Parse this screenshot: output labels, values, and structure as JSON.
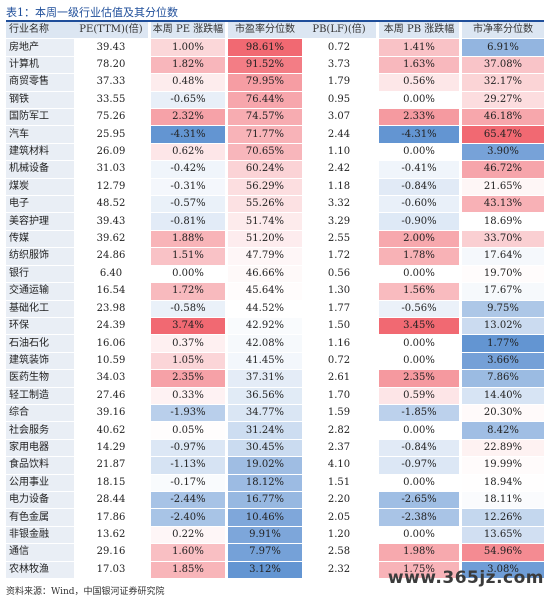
{
  "title": "表1：本周一级行业估值及其分位数",
  "headers": [
    "行业名称",
    "PE(TTM)(倍)",
    "本周 PE 涨跌幅",
    "市盈率分位数",
    "PB(LF)(倍)",
    "本周 PB 涨跌幅",
    "市净率分位数"
  ],
  "rows": [
    [
      "房地产",
      "39.43",
      "1.00%",
      "98.61%",
      "0.72",
      "1.41%",
      "6.91%"
    ],
    [
      "计算机",
      "78.20",
      "1.82%",
      "91.52%",
      "3.73",
      "1.63%",
      "37.08%"
    ],
    [
      "商贸零售",
      "37.33",
      "0.48%",
      "79.95%",
      "1.79",
      "0.56%",
      "32.17%"
    ],
    [
      "钢铁",
      "33.55",
      "-0.65%",
      "76.44%",
      "0.95",
      "0.00%",
      "29.27%"
    ],
    [
      "国防军工",
      "75.26",
      "2.32%",
      "74.57%",
      "3.07",
      "2.33%",
      "46.18%"
    ],
    [
      "汽车",
      "25.95",
      "-4.31%",
      "71.77%",
      "2.44",
      "-4.31%",
      "65.47%"
    ],
    [
      "建筑材料",
      "26.09",
      "0.62%",
      "70.65%",
      "1.10",
      "0.00%",
      "3.90%"
    ],
    [
      "机械设备",
      "31.03",
      "-0.42%",
      "60.24%",
      "2.42",
      "-0.41%",
      "46.72%"
    ],
    [
      "煤炭",
      "12.79",
      "-0.31%",
      "56.29%",
      "1.18",
      "-0.84%",
      "21.65%"
    ],
    [
      "电子",
      "48.52",
      "-0.57%",
      "55.26%",
      "3.32",
      "-0.60%",
      "43.13%"
    ],
    [
      "美容护理",
      "39.43",
      "-0.81%",
      "51.74%",
      "3.29",
      "-0.90%",
      "18.69%"
    ],
    [
      "传媒",
      "39.62",
      "1.88%",
      "51.20%",
      "2.55",
      "2.00%",
      "33.70%"
    ],
    [
      "纺织服饰",
      "24.86",
      "1.51%",
      "47.79%",
      "1.72",
      "1.78%",
      "17.64%"
    ],
    [
      "银行",
      "6.40",
      "0.00%",
      "46.66%",
      "0.56",
      "0.00%",
      "19.70%"
    ],
    [
      "交通运输",
      "16.54",
      "1.72%",
      "45.64%",
      "1.30",
      "1.56%",
      "17.67%"
    ],
    [
      "基础化工",
      "23.98",
      "-0.58%",
      "44.52%",
      "1.77",
      "-0.56%",
      "9.75%"
    ],
    [
      "环保",
      "24.39",
      "3.74%",
      "42.92%",
      "1.50",
      "3.45%",
      "13.02%"
    ],
    [
      "石油石化",
      "16.06",
      "0.37%",
      "42.08%",
      "1.16",
      "0.00%",
      "1.77%"
    ],
    [
      "建筑装饰",
      "10.59",
      "1.05%",
      "41.45%",
      "0.72",
      "0.00%",
      "3.66%"
    ],
    [
      "医药生物",
      "34.03",
      "2.35%",
      "37.31%",
      "2.61",
      "2.35%",
      "7.86%"
    ],
    [
      "轻工制造",
      "27.46",
      "0.33%",
      "36.56%",
      "1.70",
      "0.59%",
      "14.40%"
    ],
    [
      "综合",
      "39.16",
      "-1.93%",
      "34.77%",
      "1.59",
      "-1.85%",
      "20.30%"
    ],
    [
      "社会服务",
      "40.62",
      "0.05%",
      "31.24%",
      "2.82",
      "0.00%",
      "8.42%"
    ],
    [
      "家用电器",
      "14.29",
      "-0.97%",
      "30.45%",
      "2.37",
      "-0.84%",
      "22.89%"
    ],
    [
      "食品饮料",
      "21.87",
      "-1.13%",
      "19.02%",
      "4.10",
      "-0.97%",
      "19.99%"
    ],
    [
      "公用事业",
      "18.15",
      "-0.17%",
      "18.12%",
      "1.51",
      "0.00%",
      "18.94%"
    ],
    [
      "电力设备",
      "28.44",
      "-2.44%",
      "16.77%",
      "2.20",
      "-2.65%",
      "18.11%"
    ],
    [
      "有色金属",
      "17.86",
      "-2.40%",
      "10.46%",
      "2.05",
      "-2.38%",
      "12.26%"
    ],
    [
      "非银金融",
      "13.62",
      "0.22%",
      "9.91%",
      "1.20",
      "0.00%",
      "13.65%"
    ],
    [
      "通信",
      "29.16",
      "1.60%",
      "7.97%",
      "2.58",
      "1.98%",
      "54.96%"
    ],
    [
      "农林牧渔",
      "17.03",
      "1.85%",
      "3.12%",
      "2.32",
      "1.75%",
      "3.08%"
    ]
  ],
  "colors": {
    "red": "#f0616b",
    "blue": "#5b8fd0",
    "header_bg": "#dce6f2",
    "name_bg": "#e9eef5"
  },
  "source": "资料来源：Wind，中国银河证券研究院",
  "watermark": "www.365jz.com"
}
